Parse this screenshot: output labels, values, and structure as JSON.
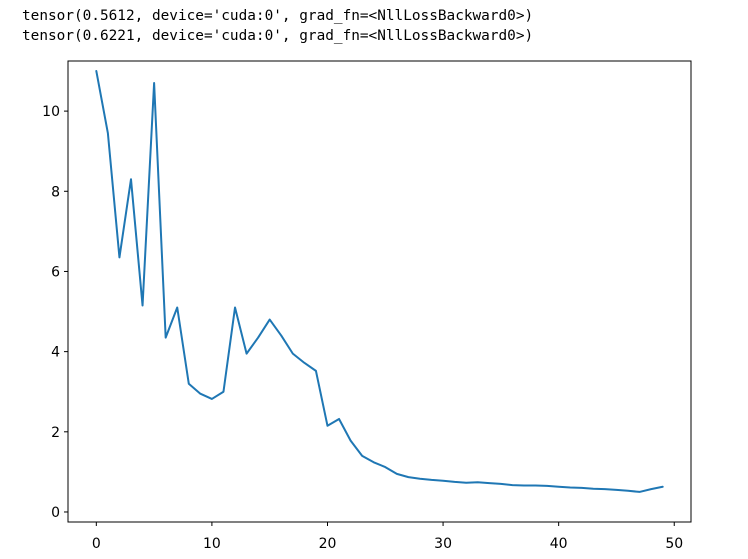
{
  "output": {
    "lines": [
      "tensor(0.5612, device='cuda:0', grad_fn=<NllLossBackward0>)",
      "tensor(0.6221, device='cuda:0', grad_fn=<NllLossBackward0>)"
    ]
  },
  "chart_data": {
    "type": "line",
    "title": "",
    "xlabel": "",
    "ylabel": "",
    "xlim": [
      -2.45,
      51.45
    ],
    "ylim": [
      -0.25,
      11.25
    ],
    "xticks": [
      0,
      10,
      20,
      30,
      40,
      50
    ],
    "yticks": [
      0,
      2,
      4,
      6,
      8,
      10
    ],
    "xtick_labels": [
      "0",
      "10",
      "20",
      "30",
      "40",
      "50"
    ],
    "ytick_labels": [
      "0",
      "2",
      "4",
      "6",
      "8",
      "10"
    ],
    "grid": false,
    "line_color": "#1f77b4",
    "series": [
      {
        "x": [
          0,
          1,
          2,
          3,
          4,
          5,
          6,
          7,
          8,
          9,
          10,
          11,
          12,
          13,
          14,
          15,
          16,
          17,
          18,
          19,
          20,
          21,
          22,
          23,
          24,
          25,
          26,
          27,
          28,
          29,
          30,
          31,
          32,
          33,
          34,
          35,
          36,
          37,
          38,
          39,
          40,
          41,
          42,
          43,
          44,
          45,
          46,
          47,
          48,
          49
        ],
        "values": [
          11.0,
          9.45,
          6.35,
          8.3,
          5.15,
          10.7,
          4.35,
          5.1,
          3.2,
          2.95,
          2.82,
          3.0,
          5.1,
          3.95,
          4.35,
          4.8,
          4.4,
          3.95,
          3.72,
          3.52,
          2.15,
          2.32,
          1.78,
          1.4,
          1.24,
          1.12,
          0.95,
          0.87,
          0.83,
          0.8,
          0.78,
          0.75,
          0.73,
          0.74,
          0.72,
          0.7,
          0.67,
          0.66,
          0.66,
          0.65,
          0.63,
          0.61,
          0.6,
          0.58,
          0.57,
          0.55,
          0.53,
          0.5,
          0.57,
          0.63
        ]
      }
    ]
  }
}
